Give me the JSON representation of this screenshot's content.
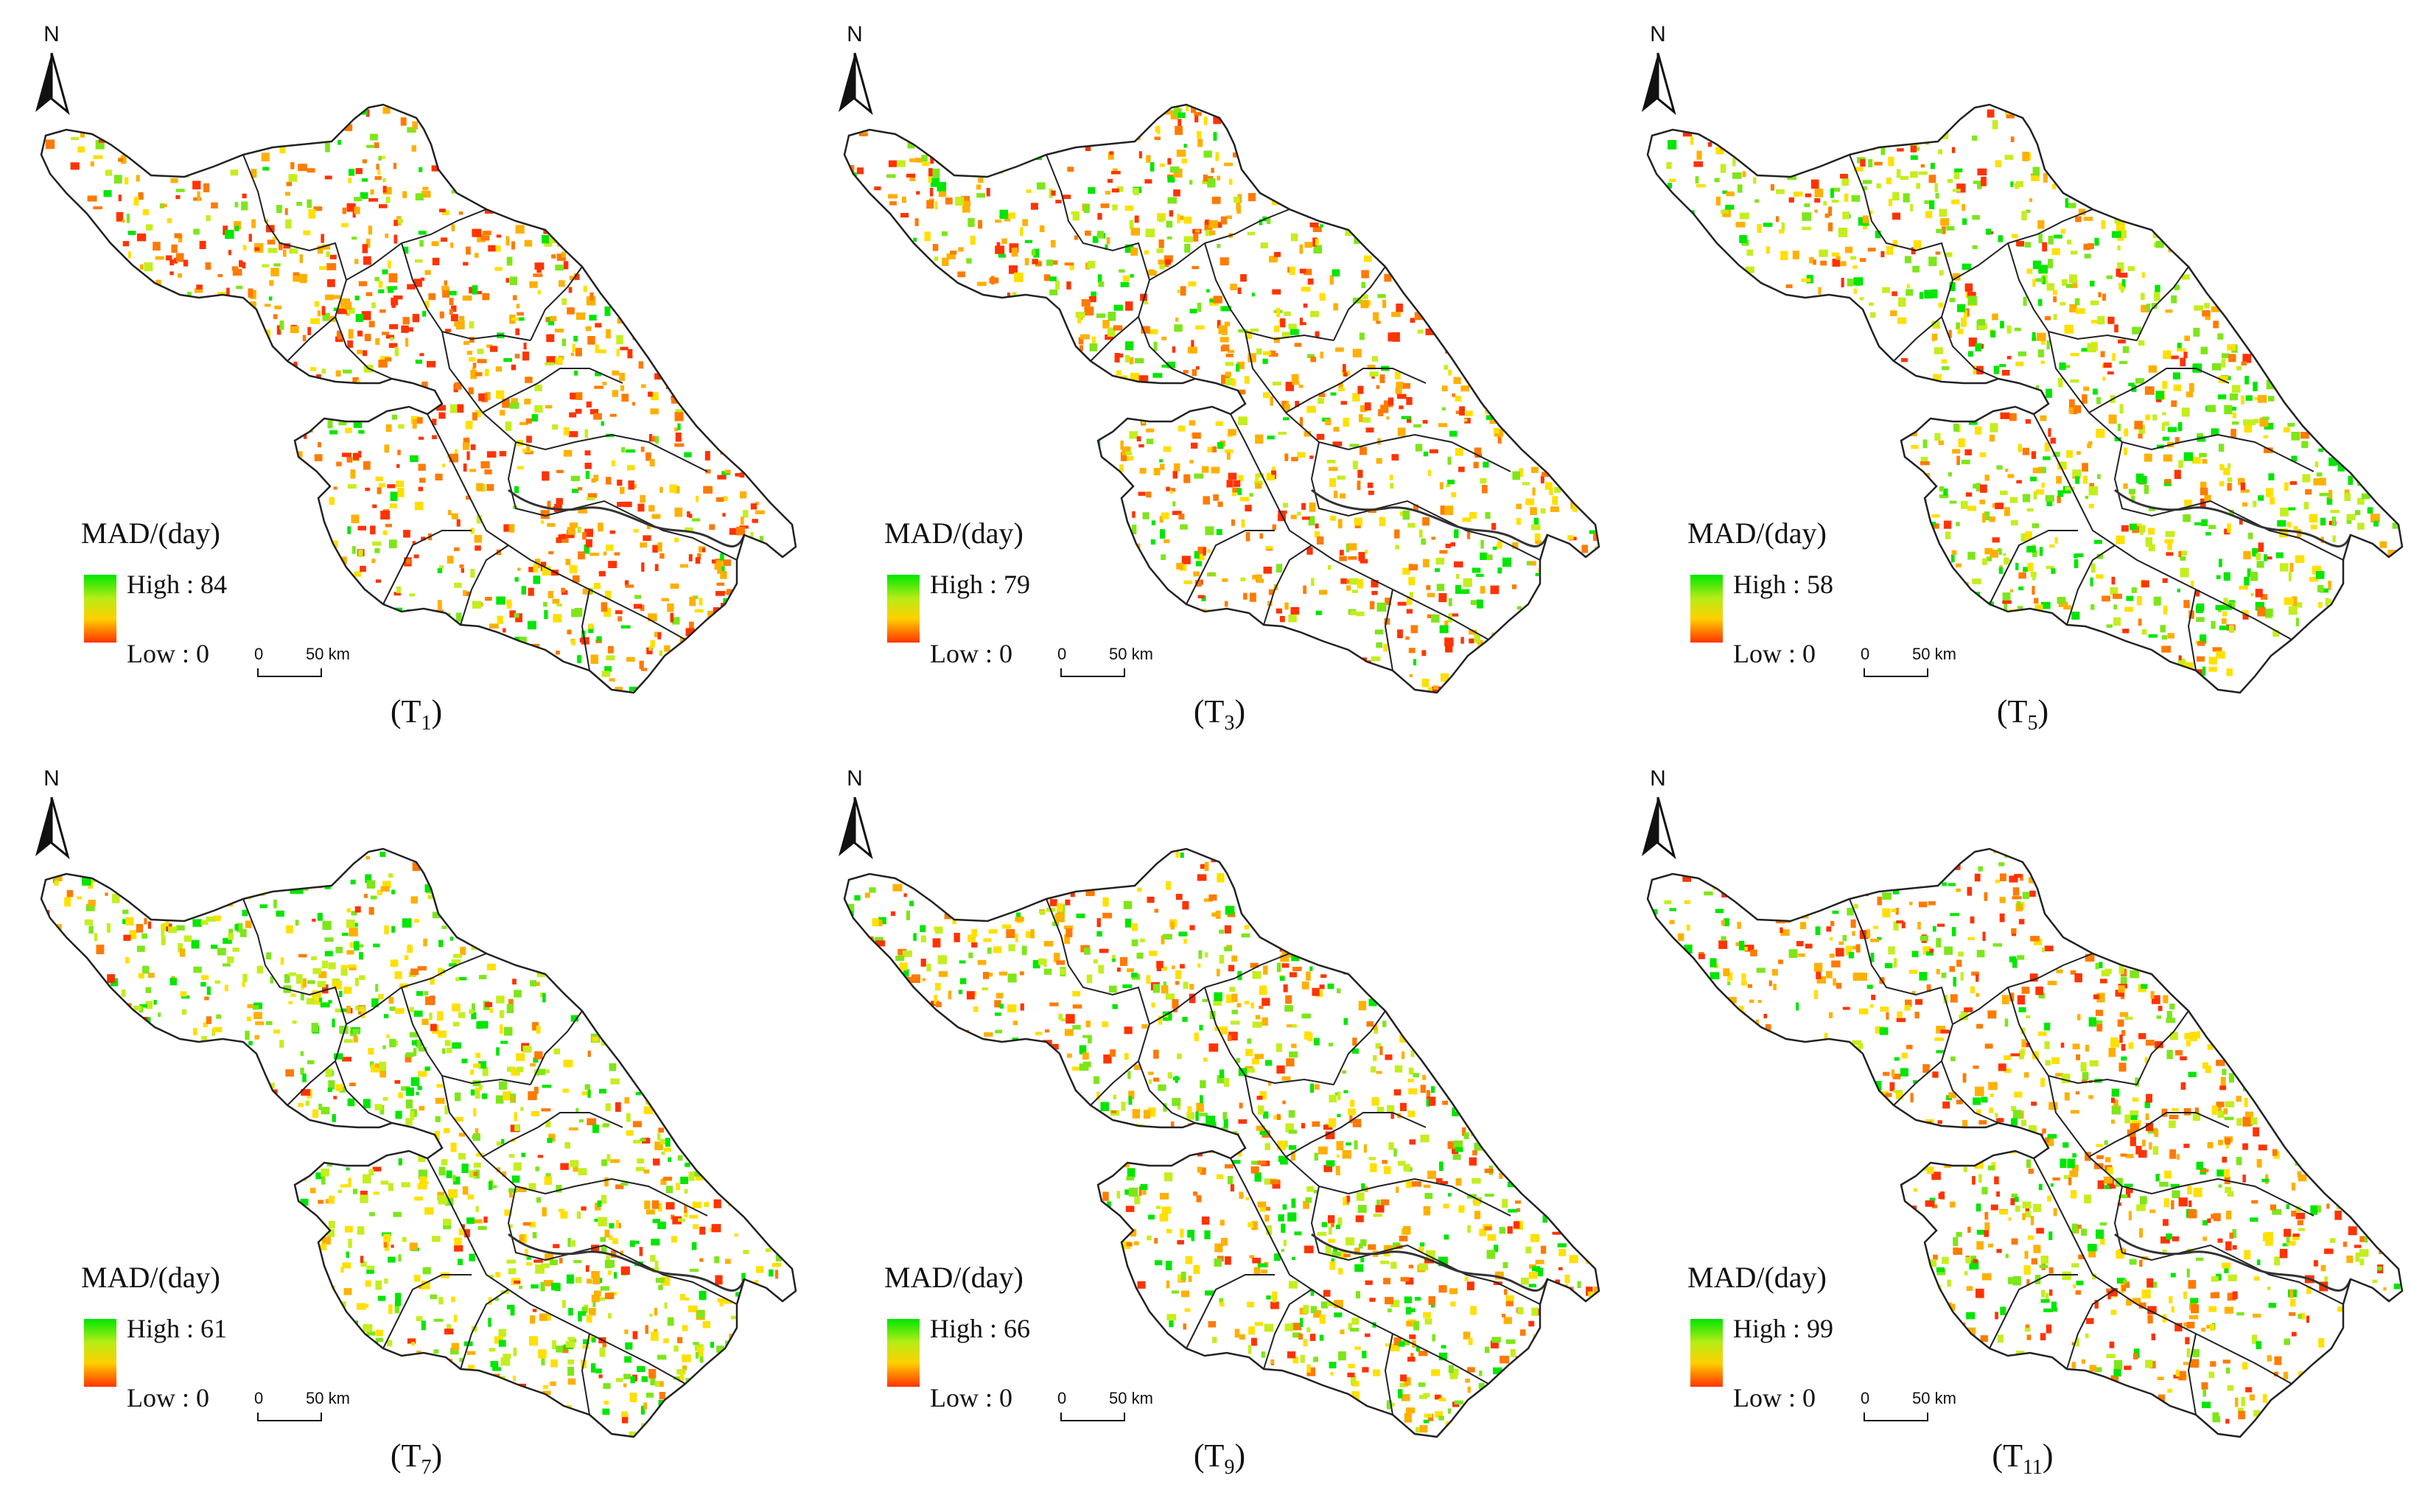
{
  "north_label": "N",
  "scale": {
    "zero": "0",
    "fifty": "50 km"
  },
  "legend": {
    "title": "MAD/(day)",
    "high_prefix": "High : ",
    "low_label": "Low : 0"
  },
  "colors": {
    "high": "#00e600",
    "mid": "#ffd000",
    "low": "#ff3300",
    "boundary": "#222222"
  },
  "panels": [
    {
      "caption_main": "(T",
      "caption_sub": "1",
      "caption_end": ")",
      "high_value": "84",
      "red_share": 0.7
    },
    {
      "caption_main": "(T",
      "caption_sub": "3",
      "caption_end": ")",
      "high_value": "79",
      "red_share": 0.55
    },
    {
      "caption_main": "(T",
      "caption_sub": "5",
      "caption_end": ")",
      "high_value": "58",
      "red_share": 0.3
    },
    {
      "caption_main": "(T",
      "caption_sub": "7",
      "caption_end": ")",
      "high_value": "61",
      "red_share": 0.22
    },
    {
      "caption_main": "(T",
      "caption_sub": "9",
      "caption_end": ")",
      "high_value": "66",
      "red_share": 0.4
    },
    {
      "caption_main": "(T",
      "caption_sub": "11",
      "caption_end": ")",
      "high_value": "99",
      "red_share": 0.5
    }
  ]
}
